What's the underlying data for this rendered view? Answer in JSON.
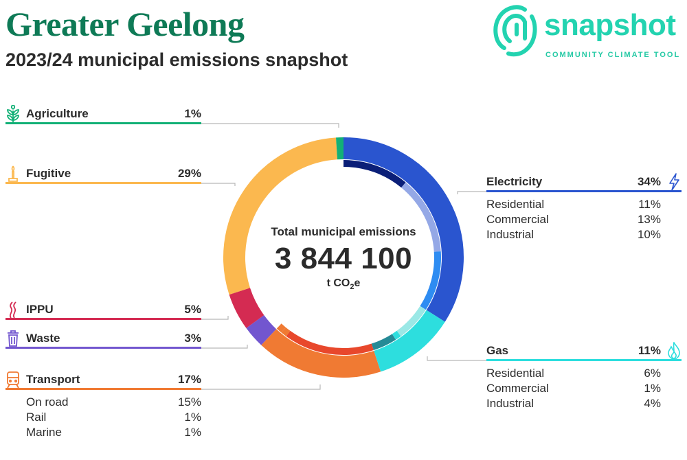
{
  "header": {
    "title": "Greater Geelong",
    "subtitle": "2023/24 municipal emissions snapshot"
  },
  "logo": {
    "word": "snapshot",
    "tagline": "COMMUNITY CLIMATE TOOL"
  },
  "center": {
    "title": "Total municipal emissions",
    "value": "3 844 100",
    "unit_prefix": "t CO",
    "unit_sub": "2",
    "unit_suffix": "e"
  },
  "chart_data": {
    "type": "pie",
    "title": "Total municipal emissions",
    "total": "3 844 100",
    "unit": "t CO2e",
    "series": [
      {
        "name": "Electricity",
        "value": 34,
        "color": "#2a55cf",
        "breakdown": [
          {
            "name": "Residential",
            "value": 11,
            "color": "#0b1f78"
          },
          {
            "name": "Commercial",
            "value": 13,
            "color": "#94a8e6"
          },
          {
            "name": "Industrial",
            "value": 10,
            "color": "#2e8cf2"
          }
        ]
      },
      {
        "name": "Gas",
        "value": 11,
        "color": "#2ddede",
        "breakdown": [
          {
            "name": "Residential",
            "value": 6,
            "color": "#9ae8e6"
          },
          {
            "name": "Commercial",
            "value": 1,
            "color": "#2ddede"
          },
          {
            "name": "Industrial",
            "value": 4,
            "color": "#258a96"
          }
        ]
      },
      {
        "name": "Transport",
        "value": 17,
        "color": "#f07a33",
        "breakdown": [
          {
            "name": "On road",
            "value": 15,
            "color": "#e8482c"
          },
          {
            "name": "Rail",
            "value": 1,
            "color": "#f07a33"
          },
          {
            "name": "Marine",
            "value": 1,
            "color": "#f07a33"
          }
        ]
      },
      {
        "name": "Waste",
        "value": 3,
        "color": "#7256cf",
        "breakdown": []
      },
      {
        "name": "IPPU",
        "value": 5,
        "color": "#d42b52",
        "breakdown": []
      },
      {
        "name": "Fugitive",
        "value": 29,
        "color": "#fbb84f",
        "breakdown": []
      },
      {
        "name": "Agriculture",
        "value": 1,
        "color": "#12b076",
        "breakdown": []
      }
    ]
  },
  "categories": {
    "agriculture": {
      "label": "Agriculture",
      "pct": "1%"
    },
    "fugitive": {
      "label": "Fugitive",
      "pct": "29%"
    },
    "ippu": {
      "label": "IPPU",
      "pct": "5%"
    },
    "waste": {
      "label": "Waste",
      "pct": "3%"
    },
    "transport": {
      "label": "Transport",
      "pct": "17%",
      "items": [
        {
          "label": "On road",
          "pct": "15%"
        },
        {
          "label": "Rail",
          "pct": "1%"
        },
        {
          "label": "Marine",
          "pct": "1%"
        }
      ]
    },
    "electricity": {
      "label": "Electricity",
      "pct": "34%",
      "items": [
        {
          "label": "Residential",
          "pct": "11%"
        },
        {
          "label": "Commercial",
          "pct": "13%"
        },
        {
          "label": "Industrial",
          "pct": "10%"
        }
      ]
    },
    "gas": {
      "label": "Gas",
      "pct": "11%",
      "items": [
        {
          "label": "Residential",
          "pct": "6%"
        },
        {
          "label": "Commercial",
          "pct": "1%"
        },
        {
          "label": "Industrial",
          "pct": "4%"
        }
      ]
    }
  },
  "icons": [
    "leaf-icon",
    "flare-icon",
    "smoke-icon",
    "bin-icon",
    "train-icon",
    "lightning-icon",
    "flame-icon"
  ]
}
